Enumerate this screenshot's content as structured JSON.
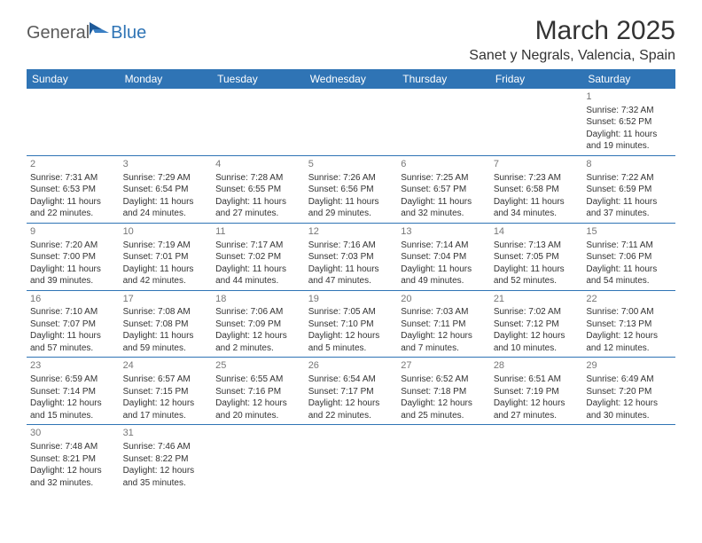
{
  "logo": {
    "general": "General",
    "blue": "Blue"
  },
  "title": "March 2025",
  "location": "Sanet y Negrals, Valencia, Spain",
  "weekdays": [
    "Sunday",
    "Monday",
    "Tuesday",
    "Wednesday",
    "Thursday",
    "Friday",
    "Saturday"
  ],
  "colors": {
    "header_bg": "#2f74b5",
    "header_text": "#ffffff",
    "border": "#2f74b5",
    "daynum": "#777777",
    "body_text": "#333333"
  },
  "weeks": [
    [
      null,
      null,
      null,
      null,
      null,
      null,
      {
        "n": "1",
        "sr": "Sunrise: 7:32 AM",
        "ss": "Sunset: 6:52 PM",
        "d1": "Daylight: 11 hours",
        "d2": "and 19 minutes."
      }
    ],
    [
      {
        "n": "2",
        "sr": "Sunrise: 7:31 AM",
        "ss": "Sunset: 6:53 PM",
        "d1": "Daylight: 11 hours",
        "d2": "and 22 minutes."
      },
      {
        "n": "3",
        "sr": "Sunrise: 7:29 AM",
        "ss": "Sunset: 6:54 PM",
        "d1": "Daylight: 11 hours",
        "d2": "and 24 minutes."
      },
      {
        "n": "4",
        "sr": "Sunrise: 7:28 AM",
        "ss": "Sunset: 6:55 PM",
        "d1": "Daylight: 11 hours",
        "d2": "and 27 minutes."
      },
      {
        "n": "5",
        "sr": "Sunrise: 7:26 AM",
        "ss": "Sunset: 6:56 PM",
        "d1": "Daylight: 11 hours",
        "d2": "and 29 minutes."
      },
      {
        "n": "6",
        "sr": "Sunrise: 7:25 AM",
        "ss": "Sunset: 6:57 PM",
        "d1": "Daylight: 11 hours",
        "d2": "and 32 minutes."
      },
      {
        "n": "7",
        "sr": "Sunrise: 7:23 AM",
        "ss": "Sunset: 6:58 PM",
        "d1": "Daylight: 11 hours",
        "d2": "and 34 minutes."
      },
      {
        "n": "8",
        "sr": "Sunrise: 7:22 AM",
        "ss": "Sunset: 6:59 PM",
        "d1": "Daylight: 11 hours",
        "d2": "and 37 minutes."
      }
    ],
    [
      {
        "n": "9",
        "sr": "Sunrise: 7:20 AM",
        "ss": "Sunset: 7:00 PM",
        "d1": "Daylight: 11 hours",
        "d2": "and 39 minutes."
      },
      {
        "n": "10",
        "sr": "Sunrise: 7:19 AM",
        "ss": "Sunset: 7:01 PM",
        "d1": "Daylight: 11 hours",
        "d2": "and 42 minutes."
      },
      {
        "n": "11",
        "sr": "Sunrise: 7:17 AM",
        "ss": "Sunset: 7:02 PM",
        "d1": "Daylight: 11 hours",
        "d2": "and 44 minutes."
      },
      {
        "n": "12",
        "sr": "Sunrise: 7:16 AM",
        "ss": "Sunset: 7:03 PM",
        "d1": "Daylight: 11 hours",
        "d2": "and 47 minutes."
      },
      {
        "n": "13",
        "sr": "Sunrise: 7:14 AM",
        "ss": "Sunset: 7:04 PM",
        "d1": "Daylight: 11 hours",
        "d2": "and 49 minutes."
      },
      {
        "n": "14",
        "sr": "Sunrise: 7:13 AM",
        "ss": "Sunset: 7:05 PM",
        "d1": "Daylight: 11 hours",
        "d2": "and 52 minutes."
      },
      {
        "n": "15",
        "sr": "Sunrise: 7:11 AM",
        "ss": "Sunset: 7:06 PM",
        "d1": "Daylight: 11 hours",
        "d2": "and 54 minutes."
      }
    ],
    [
      {
        "n": "16",
        "sr": "Sunrise: 7:10 AM",
        "ss": "Sunset: 7:07 PM",
        "d1": "Daylight: 11 hours",
        "d2": "and 57 minutes."
      },
      {
        "n": "17",
        "sr": "Sunrise: 7:08 AM",
        "ss": "Sunset: 7:08 PM",
        "d1": "Daylight: 11 hours",
        "d2": "and 59 minutes."
      },
      {
        "n": "18",
        "sr": "Sunrise: 7:06 AM",
        "ss": "Sunset: 7:09 PM",
        "d1": "Daylight: 12 hours",
        "d2": "and 2 minutes."
      },
      {
        "n": "19",
        "sr": "Sunrise: 7:05 AM",
        "ss": "Sunset: 7:10 PM",
        "d1": "Daylight: 12 hours",
        "d2": "and 5 minutes."
      },
      {
        "n": "20",
        "sr": "Sunrise: 7:03 AM",
        "ss": "Sunset: 7:11 PM",
        "d1": "Daylight: 12 hours",
        "d2": "and 7 minutes."
      },
      {
        "n": "21",
        "sr": "Sunrise: 7:02 AM",
        "ss": "Sunset: 7:12 PM",
        "d1": "Daylight: 12 hours",
        "d2": "and 10 minutes."
      },
      {
        "n": "22",
        "sr": "Sunrise: 7:00 AM",
        "ss": "Sunset: 7:13 PM",
        "d1": "Daylight: 12 hours",
        "d2": "and 12 minutes."
      }
    ],
    [
      {
        "n": "23",
        "sr": "Sunrise: 6:59 AM",
        "ss": "Sunset: 7:14 PM",
        "d1": "Daylight: 12 hours",
        "d2": "and 15 minutes."
      },
      {
        "n": "24",
        "sr": "Sunrise: 6:57 AM",
        "ss": "Sunset: 7:15 PM",
        "d1": "Daylight: 12 hours",
        "d2": "and 17 minutes."
      },
      {
        "n": "25",
        "sr": "Sunrise: 6:55 AM",
        "ss": "Sunset: 7:16 PM",
        "d1": "Daylight: 12 hours",
        "d2": "and 20 minutes."
      },
      {
        "n": "26",
        "sr": "Sunrise: 6:54 AM",
        "ss": "Sunset: 7:17 PM",
        "d1": "Daylight: 12 hours",
        "d2": "and 22 minutes."
      },
      {
        "n": "27",
        "sr": "Sunrise: 6:52 AM",
        "ss": "Sunset: 7:18 PM",
        "d1": "Daylight: 12 hours",
        "d2": "and 25 minutes."
      },
      {
        "n": "28",
        "sr": "Sunrise: 6:51 AM",
        "ss": "Sunset: 7:19 PM",
        "d1": "Daylight: 12 hours",
        "d2": "and 27 minutes."
      },
      {
        "n": "29",
        "sr": "Sunrise: 6:49 AM",
        "ss": "Sunset: 7:20 PM",
        "d1": "Daylight: 12 hours",
        "d2": "and 30 minutes."
      }
    ],
    [
      {
        "n": "30",
        "sr": "Sunrise: 7:48 AM",
        "ss": "Sunset: 8:21 PM",
        "d1": "Daylight: 12 hours",
        "d2": "and 32 minutes."
      },
      {
        "n": "31",
        "sr": "Sunrise: 7:46 AM",
        "ss": "Sunset: 8:22 PM",
        "d1": "Daylight: 12 hours",
        "d2": "and 35 minutes."
      },
      null,
      null,
      null,
      null,
      null
    ]
  ]
}
